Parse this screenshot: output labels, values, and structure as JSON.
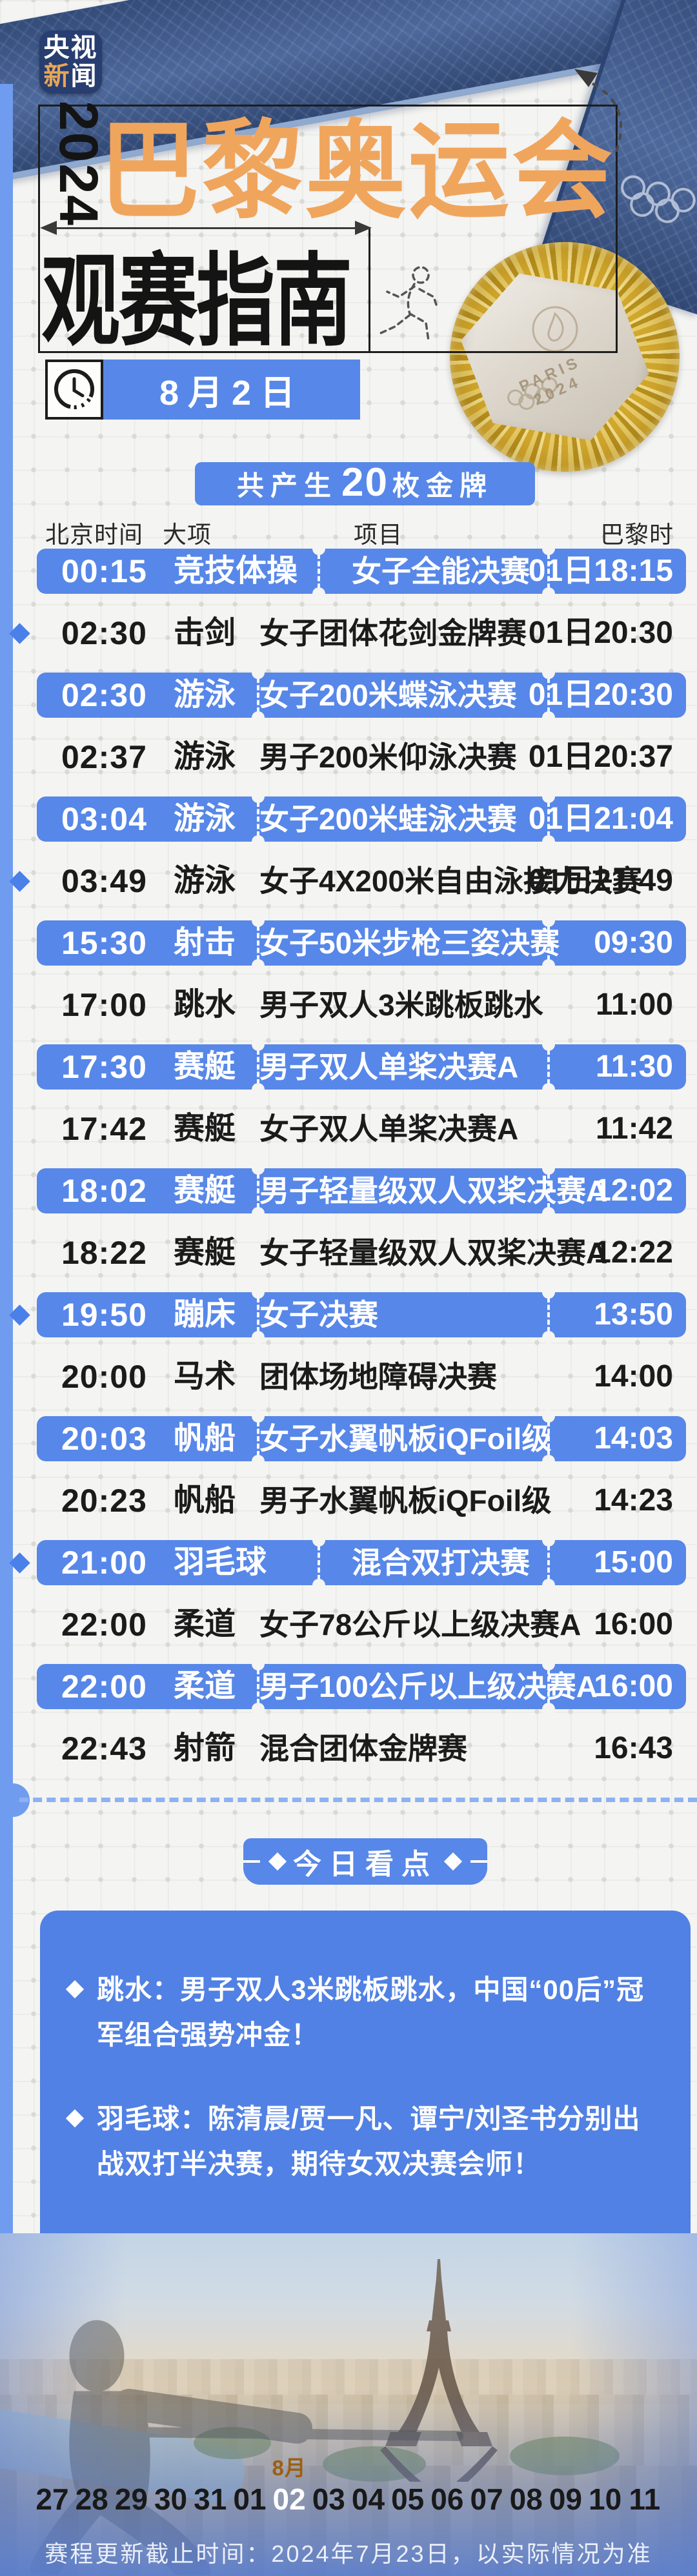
{
  "colors": {
    "accent_blue": "#5787e8",
    "box_blue": "#5181e4",
    "stripe_blue": "#6f9cee",
    "ribbon_navy": "#3e5c94",
    "title_orange": "#f0a55d",
    "logo_navy": "#283d70",
    "pill_orange": "#eca64b",
    "paper": "#f4f4f2",
    "gold": "#d3a92f"
  },
  "meta": {
    "logo_line1": "央视",
    "logo_line2_hl": "新",
    "logo_line2": "闻"
  },
  "header": {
    "year": "2024",
    "title": "巴黎奥运会",
    "subtitle": "观赛指南",
    "date_label": "8月2日",
    "medal_engraving": "PARIS 2024",
    "gold_count_prefix": "共产生",
    "gold_count": "20",
    "gold_count_suffix": "枚金牌"
  },
  "table": {
    "headers": {
      "beijing": "北京时间",
      "sport": "大项",
      "event": "项目",
      "paris": "巴黎时间"
    },
    "rows": [
      {
        "time": "00:15",
        "sport": "竞技体操",
        "event": "女子全能决赛",
        "paris": "01日18:15",
        "highlight": true,
        "star": false
      },
      {
        "time": "02:30",
        "sport": "击剑",
        "event": "女子团体花剑金牌赛",
        "paris": "01日20:30",
        "highlight": false,
        "star": true
      },
      {
        "time": "02:30",
        "sport": "游泳",
        "event": "女子200米蝶泳决赛",
        "paris": "01日20:30",
        "highlight": true,
        "star": false
      },
      {
        "time": "02:37",
        "sport": "游泳",
        "event": "男子200米仰泳决赛",
        "paris": "01日20:37",
        "highlight": false,
        "star": false
      },
      {
        "time": "03:04",
        "sport": "游泳",
        "event": "女子200米蛙泳决赛",
        "paris": "01日21:04",
        "highlight": true,
        "star": false
      },
      {
        "time": "03:49",
        "sport": "游泳",
        "event": "女子4X200米自由泳接力决赛",
        "paris": "01日21:49",
        "highlight": false,
        "star": true
      },
      {
        "time": "15:30",
        "sport": "射击",
        "event": "女子50米步枪三姿决赛",
        "paris": "09:30",
        "highlight": true,
        "star": false
      },
      {
        "time": "17:00",
        "sport": "跳水",
        "event": "男子双人3米跳板跳水",
        "paris": "11:00",
        "highlight": false,
        "star": false
      },
      {
        "time": "17:30",
        "sport": "赛艇",
        "event": "男子双人单桨决赛A",
        "paris": "11:30",
        "highlight": true,
        "star": false
      },
      {
        "time": "17:42",
        "sport": "赛艇",
        "event": "女子双人单桨决赛A",
        "paris": "11:42",
        "highlight": false,
        "star": false
      },
      {
        "time": "18:02",
        "sport": "赛艇",
        "event": "男子轻量级双人双桨决赛A",
        "paris": "12:02",
        "highlight": true,
        "star": false
      },
      {
        "time": "18:22",
        "sport": "赛艇",
        "event": "女子轻量级双人双桨决赛A",
        "paris": "12:22",
        "highlight": false,
        "star": false
      },
      {
        "time": "19:50",
        "sport": "蹦床",
        "event": "女子决赛",
        "paris": "13:50",
        "highlight": true,
        "star": true
      },
      {
        "time": "20:00",
        "sport": "马术",
        "event": "团体场地障碍决赛",
        "paris": "14:00",
        "highlight": false,
        "star": false
      },
      {
        "time": "20:03",
        "sport": "帆船",
        "event": "女子水翼帆板iQFoil级",
        "paris": "14:03",
        "highlight": true,
        "star": false
      },
      {
        "time": "20:23",
        "sport": "帆船",
        "event": "男子水翼帆板iQFoil级",
        "paris": "14:23",
        "highlight": false,
        "star": false
      },
      {
        "time": "21:00",
        "sport": "羽毛球",
        "event": "混合双打决赛",
        "paris": "15:00",
        "highlight": true,
        "star": true
      },
      {
        "time": "22:00",
        "sport": "柔道",
        "event": "女子78公斤以上级决赛A",
        "paris": "16:00",
        "highlight": false,
        "star": false
      },
      {
        "time": "22:00",
        "sport": "柔道",
        "event": "男子100公斤以上级决赛A",
        "paris": "16:00",
        "highlight": true,
        "star": false
      },
      {
        "time": "22:43",
        "sport": "射箭",
        "event": "混合团体金牌赛",
        "paris": "16:43",
        "highlight": false,
        "star": false
      }
    ]
  },
  "today": {
    "button_label": "今日看点",
    "items": [
      "跳水：男子双人3米跳板跳水，中国“00后”冠军组合强势冲金！",
      "羽毛球：陈清晨/贾一凡、谭宁/刘圣书分别出战双打半决赛，期待女双决赛会师！"
    ]
  },
  "calendar": {
    "month_label": "8月",
    "active": "02",
    "dates": [
      "27",
      "28",
      "29",
      "30",
      "31",
      "01",
      "02",
      "03",
      "04",
      "05",
      "06",
      "07",
      "08",
      "09",
      "10",
      "11"
    ]
  },
  "footer": {
    "note": "赛程更新截止时间：2024年7月23日，以实际情况为准"
  }
}
